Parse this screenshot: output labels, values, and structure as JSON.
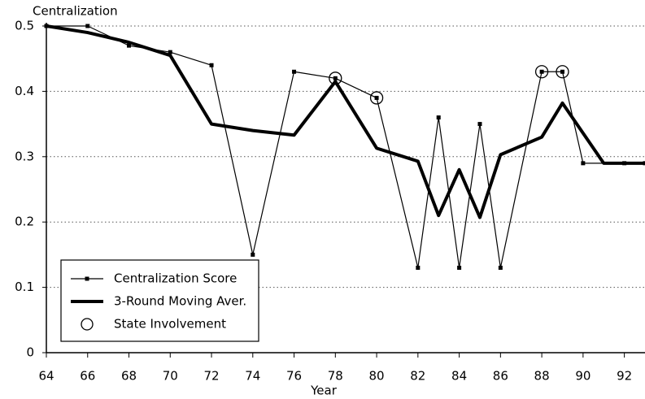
{
  "chart_data": {
    "type": "line",
    "ylabel": "Centralization",
    "xlabel": "Year",
    "xlim": [
      64,
      93
    ],
    "xticks": [
      64,
      66,
      68,
      70,
      72,
      74,
      76,
      78,
      80,
      82,
      84,
      86,
      88,
      90,
      92
    ],
    "ylim": [
      0,
      0.5
    ],
    "yticks": [
      0,
      0.1,
      0.2,
      0.3,
      0.4,
      0.5
    ],
    "grid": true,
    "legend": "lower left",
    "series": [
      {
        "name": "Centralization Score",
        "color": "#000000",
        "style": "line-markers",
        "x": [
          64,
          66,
          68,
          70,
          72,
          74,
          76,
          78,
          80,
          82,
          83,
          84,
          85,
          86,
          88,
          89,
          90,
          92,
          93
        ],
        "values": [
          0.5,
          0.5,
          0.47,
          0.46,
          0.44,
          0.15,
          0.43,
          0.42,
          0.39,
          0.13,
          0.36,
          0.13,
          0.35,
          0.13,
          0.43,
          0.43,
          0.29,
          0.29,
          0.29
        ]
      },
      {
        "name": "3-Round Moving Aver.",
        "color": "#000000",
        "style": "thick-line",
        "x": [
          64,
          66,
          68,
          70,
          72,
          74,
          76,
          78,
          80,
          82,
          83,
          84,
          85,
          86,
          88,
          89,
          91,
          93
        ],
        "values": [
          0.5,
          0.49,
          0.475,
          0.455,
          0.35,
          0.34,
          0.333,
          0.415,
          0.313,
          0.293,
          0.21,
          0.28,
          0.207,
          0.303,
          0.33,
          0.382,
          0.29,
          0.29
        ]
      },
      {
        "name": "State Involvement",
        "color": "#000000",
        "style": "circles",
        "x": [
          78,
          80,
          88,
          89
        ],
        "values": [
          0.42,
          0.39,
          0.43,
          0.43
        ]
      }
    ]
  }
}
